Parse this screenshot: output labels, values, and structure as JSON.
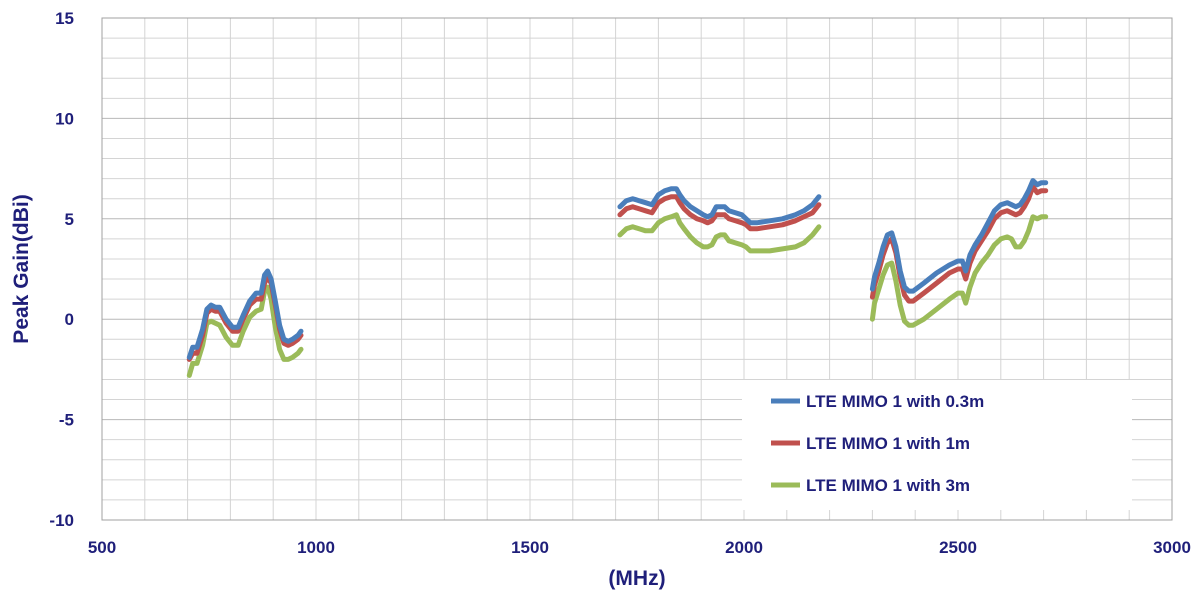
{
  "chart_data": {
    "type": "line",
    "title": "",
    "xlabel": "(MHz)",
    "ylabel": "Peak Gain(dBi)",
    "xlim": [
      500,
      3000
    ],
    "ylim": [
      -10,
      15
    ],
    "x_major_ticks": [
      500,
      1000,
      1500,
      2000,
      2500,
      3000
    ],
    "y_major_ticks": [
      -10,
      -5,
      0,
      5,
      10,
      15
    ],
    "x_tick_labels": [
      "500",
      "1000",
      "1500",
      "2000",
      "2500",
      "3000"
    ],
    "y_tick_labels": [
      "-10",
      "-5",
      "0",
      "5",
      "10",
      "15"
    ],
    "x_minor_step": 100,
    "y_minor_step": 1,
    "grid": true,
    "legend_position": "bottom-right",
    "series": [
      {
        "name": "LTE MIMO 1 with 0.3m",
        "color": "#4a7ebb",
        "segments": [
          [
            [
              704,
              -1.9
            ],
            [
              712,
              -1.4
            ],
            [
              722,
              -1.4
            ],
            [
              735,
              -0.5
            ],
            [
              745,
              0.5
            ],
            [
              755,
              0.7
            ],
            [
              765,
              0.6
            ],
            [
              775,
              0.6
            ],
            [
              790,
              0.0
            ],
            [
              805,
              -0.4
            ],
            [
              818,
              -0.4
            ],
            [
              830,
              0.2
            ],
            [
              845,
              0.9
            ],
            [
              860,
              1.3
            ],
            [
              872,
              1.3
            ],
            [
              880,
              2.2
            ],
            [
              887,
              2.4
            ],
            [
              895,
              2.0
            ],
            [
              905,
              0.9
            ],
            [
              915,
              -0.3
            ],
            [
              925,
              -1.0
            ],
            [
              935,
              -1.1
            ],
            [
              945,
              -1.0
            ],
            [
              958,
              -0.8
            ],
            [
              965,
              -0.6
            ]
          ],
          [
            [
              1710,
              5.6
            ],
            [
              1725,
              5.9
            ],
            [
              1740,
              6.0
            ],
            [
              1755,
              5.9
            ],
            [
              1770,
              5.8
            ],
            [
              1785,
              5.7
            ],
            [
              1800,
              6.2
            ],
            [
              1815,
              6.4
            ],
            [
              1830,
              6.5
            ],
            [
              1842,
              6.5
            ],
            [
              1850,
              6.2
            ],
            [
              1860,
              5.9
            ],
            [
              1875,
              5.6
            ],
            [
              1890,
              5.4
            ],
            [
              1905,
              5.2
            ],
            [
              1915,
              5.1
            ],
            [
              1925,
              5.2
            ],
            [
              1935,
              5.6
            ],
            [
              1945,
              5.6
            ],
            [
              1955,
              5.6
            ],
            [
              1965,
              5.4
            ],
            [
              1980,
              5.3
            ],
            [
              1995,
              5.2
            ],
            [
              2005,
              5.0
            ],
            [
              2015,
              4.8
            ],
            [
              2030,
              4.8
            ],
            [
              2060,
              4.9
            ],
            [
              2090,
              5.0
            ],
            [
              2120,
              5.2
            ],
            [
              2140,
              5.4
            ],
            [
              2160,
              5.7
            ],
            [
              2175,
              6.1
            ]
          ],
          [
            [
              2300,
              1.5
            ],
            [
              2305,
              2.1
            ],
            [
              2315,
              2.8
            ],
            [
              2325,
              3.6
            ],
            [
              2335,
              4.2
            ],
            [
              2345,
              4.3
            ],
            [
              2355,
              3.6
            ],
            [
              2365,
              2.4
            ],
            [
              2375,
              1.6
            ],
            [
              2385,
              1.4
            ],
            [
              2395,
              1.4
            ],
            [
              2420,
              1.8
            ],
            [
              2450,
              2.3
            ],
            [
              2480,
              2.7
            ],
            [
              2500,
              2.9
            ],
            [
              2510,
              2.9
            ],
            [
              2518,
              2.4
            ],
            [
              2528,
              3.2
            ],
            [
              2540,
              3.7
            ],
            [
              2555,
              4.2
            ],
            [
              2570,
              4.8
            ],
            [
              2585,
              5.4
            ],
            [
              2600,
              5.7
            ],
            [
              2615,
              5.8
            ],
            [
              2625,
              5.7
            ],
            [
              2635,
              5.6
            ],
            [
              2645,
              5.7
            ],
            [
              2655,
              6.0
            ],
            [
              2665,
              6.4
            ],
            [
              2675,
              6.9
            ],
            [
              2685,
              6.7
            ],
            [
              2695,
              6.8
            ],
            [
              2705,
              6.8
            ]
          ]
        ]
      },
      {
        "name": "LTE MIMO 1 with 1m",
        "color": "#c0504d",
        "segments": [
          [
            [
              704,
              -2.0
            ],
            [
              712,
              -1.7
            ],
            [
              722,
              -1.7
            ],
            [
              735,
              -0.8
            ],
            [
              745,
              0.3
            ],
            [
              755,
              0.5
            ],
            [
              765,
              0.4
            ],
            [
              775,
              0.4
            ],
            [
              790,
              -0.2
            ],
            [
              805,
              -0.6
            ],
            [
              818,
              -0.6
            ],
            [
              830,
              0.0
            ],
            [
              845,
              0.7
            ],
            [
              860,
              1.0
            ],
            [
              872,
              1.0
            ],
            [
              880,
              1.8
            ],
            [
              887,
              2.1
            ],
            [
              895,
              1.8
            ],
            [
              905,
              0.7
            ],
            [
              915,
              -0.5
            ],
            [
              925,
              -1.2
            ],
            [
              935,
              -1.3
            ],
            [
              945,
              -1.2
            ],
            [
              958,
              -1.0
            ],
            [
              965,
              -0.8
            ]
          ],
          [
            [
              1710,
              5.2
            ],
            [
              1725,
              5.5
            ],
            [
              1740,
              5.6
            ],
            [
              1755,
              5.5
            ],
            [
              1770,
              5.4
            ],
            [
              1785,
              5.3
            ],
            [
              1800,
              5.8
            ],
            [
              1815,
              6.0
            ],
            [
              1830,
              6.1
            ],
            [
              1842,
              6.1
            ],
            [
              1850,
              5.8
            ],
            [
              1860,
              5.5
            ],
            [
              1875,
              5.2
            ],
            [
              1890,
              5.0
            ],
            [
              1905,
              4.9
            ],
            [
              1915,
              4.8
            ],
            [
              1925,
              4.9
            ],
            [
              1935,
              5.2
            ],
            [
              1945,
              5.2
            ],
            [
              1955,
              5.2
            ],
            [
              1965,
              5.0
            ],
            [
              1980,
              4.9
            ],
            [
              1995,
              4.8
            ],
            [
              2005,
              4.7
            ],
            [
              2015,
              4.5
            ],
            [
              2030,
              4.5
            ],
            [
              2060,
              4.6
            ],
            [
              2090,
              4.7
            ],
            [
              2120,
              4.9
            ],
            [
              2140,
              5.1
            ],
            [
              2160,
              5.3
            ],
            [
              2175,
              5.7
            ]
          ],
          [
            [
              2300,
              1.1
            ],
            [
              2305,
              1.7
            ],
            [
              2315,
              2.4
            ],
            [
              2325,
              3.2
            ],
            [
              2335,
              3.8
            ],
            [
              2345,
              4.0
            ],
            [
              2355,
              3.3
            ],
            [
              2365,
              2.1
            ],
            [
              2375,
              1.2
            ],
            [
              2385,
              0.9
            ],
            [
              2395,
              0.9
            ],
            [
              2420,
              1.3
            ],
            [
              2450,
              1.8
            ],
            [
              2480,
              2.3
            ],
            [
              2500,
              2.5
            ],
            [
              2510,
              2.5
            ],
            [
              2518,
              2.0
            ],
            [
              2528,
              2.8
            ],
            [
              2540,
              3.4
            ],
            [
              2555,
              3.9
            ],
            [
              2570,
              4.4
            ],
            [
              2585,
              5.0
            ],
            [
              2600,
              5.3
            ],
            [
              2615,
              5.4
            ],
            [
              2625,
              5.3
            ],
            [
              2635,
              5.2
            ],
            [
              2645,
              5.3
            ],
            [
              2655,
              5.6
            ],
            [
              2665,
              6.0
            ],
            [
              2675,
              6.6
            ],
            [
              2685,
              6.3
            ],
            [
              2695,
              6.4
            ],
            [
              2705,
              6.4
            ]
          ]
        ]
      },
      {
        "name": "LTE MIMO 1 with 3m",
        "color": "#9bbb59",
        "segments": [
          [
            [
              704,
              -2.8
            ],
            [
              712,
              -2.2
            ],
            [
              722,
              -2.2
            ],
            [
              735,
              -1.3
            ],
            [
              745,
              -0.2
            ],
            [
              755,
              -0.1
            ],
            [
              765,
              -0.2
            ],
            [
              775,
              -0.3
            ],
            [
              790,
              -0.9
            ],
            [
              805,
              -1.3
            ],
            [
              818,
              -1.3
            ],
            [
              830,
              -0.6
            ],
            [
              845,
              0.1
            ],
            [
              860,
              0.4
            ],
            [
              872,
              0.5
            ],
            [
              880,
              1.4
            ],
            [
              887,
              1.6
            ],
            [
              895,
              1.0
            ],
            [
              905,
              -0.4
            ],
            [
              915,
              -1.5
            ],
            [
              925,
              -2.0
            ],
            [
              935,
              -2.0
            ],
            [
              945,
              -1.9
            ],
            [
              958,
              -1.7
            ],
            [
              965,
              -1.5
            ]
          ],
          [
            [
              1710,
              4.2
            ],
            [
              1725,
              4.5
            ],
            [
              1740,
              4.6
            ],
            [
              1755,
              4.5
            ],
            [
              1770,
              4.4
            ],
            [
              1785,
              4.4
            ],
            [
              1800,
              4.8
            ],
            [
              1815,
              5.0
            ],
            [
              1830,
              5.1
            ],
            [
              1842,
              5.2
            ],
            [
              1850,
              4.8
            ],
            [
              1860,
              4.5
            ],
            [
              1875,
              4.1
            ],
            [
              1890,
              3.8
            ],
            [
              1905,
              3.6
            ],
            [
              1915,
              3.6
            ],
            [
              1925,
              3.7
            ],
            [
              1935,
              4.1
            ],
            [
              1945,
              4.2
            ],
            [
              1955,
              4.2
            ],
            [
              1965,
              3.9
            ],
            [
              1980,
              3.8
            ],
            [
              1995,
              3.7
            ],
            [
              2005,
              3.6
            ],
            [
              2015,
              3.4
            ],
            [
              2030,
              3.4
            ],
            [
              2060,
              3.4
            ],
            [
              2090,
              3.5
            ],
            [
              2120,
              3.6
            ],
            [
              2140,
              3.8
            ],
            [
              2160,
              4.2
            ],
            [
              2175,
              4.6
            ]
          ],
          [
            [
              2300,
              0.0
            ],
            [
              2305,
              0.8
            ],
            [
              2315,
              1.5
            ],
            [
              2325,
              2.2
            ],
            [
              2335,
              2.7
            ],
            [
              2345,
              2.8
            ],
            [
              2355,
              1.9
            ],
            [
              2365,
              0.7
            ],
            [
              2375,
              -0.1
            ],
            [
              2385,
              -0.3
            ],
            [
              2395,
              -0.3
            ],
            [
              2420,
              0.0
            ],
            [
              2450,
              0.5
            ],
            [
              2480,
              1.0
            ],
            [
              2500,
              1.3
            ],
            [
              2510,
              1.3
            ],
            [
              2518,
              0.8
            ],
            [
              2528,
              1.6
            ],
            [
              2540,
              2.3
            ],
            [
              2555,
              2.8
            ],
            [
              2570,
              3.2
            ],
            [
              2585,
              3.7
            ],
            [
              2600,
              4.0
            ],
            [
              2615,
              4.1
            ],
            [
              2625,
              4.0
            ],
            [
              2635,
              3.6
            ],
            [
              2645,
              3.6
            ],
            [
              2655,
              3.9
            ],
            [
              2665,
              4.4
            ],
            [
              2675,
              5.1
            ],
            [
              2685,
              5.0
            ],
            [
              2695,
              5.1
            ],
            [
              2705,
              5.1
            ]
          ]
        ]
      }
    ]
  }
}
